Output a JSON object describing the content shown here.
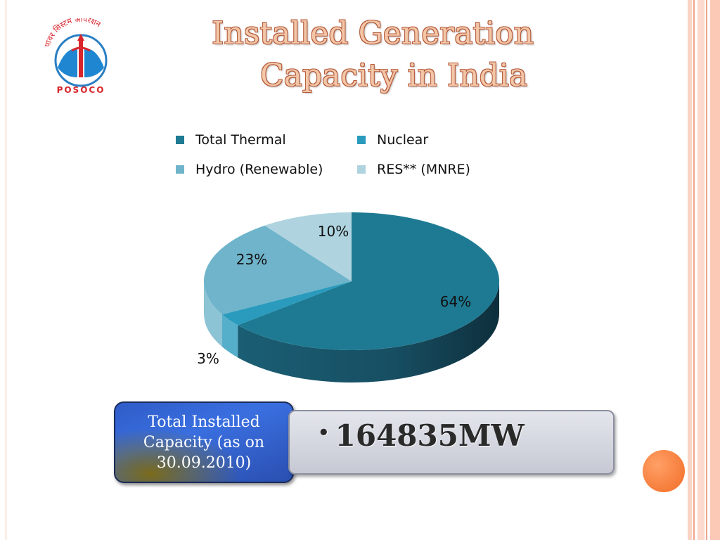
{
  "slide": {
    "title_line1": "Installed Generation",
    "title_line2": "Capacity in India",
    "logo_text": "POSOCO",
    "logo_hindi": "पावर सिस्टम ऑपरेशन"
  },
  "colors": {
    "thermal": "#1e7a93",
    "nuclear": "#2a9bbd",
    "hydro": "#6fb4cb",
    "res": "#afd4e0",
    "title_fill": "#f3c6a8",
    "title_outline": "#b45a3a",
    "accent_orange": "#f26c26"
  },
  "chart_data": {
    "type": "pie",
    "title": "",
    "categories": [
      "Total Thermal",
      "Nuclear",
      "Hydro (Renewable)",
      "RES** (MNRE)"
    ],
    "values": [
      64,
      3,
      23,
      10
    ],
    "data_labels": [
      "64%",
      "3%",
      "23%",
      "10%"
    ],
    "legend_position": "top",
    "three_d": true
  },
  "summary": {
    "label": "Total Installed Capacity (as on 30.09.2010)",
    "bullet": "•",
    "value": "164835MW"
  }
}
